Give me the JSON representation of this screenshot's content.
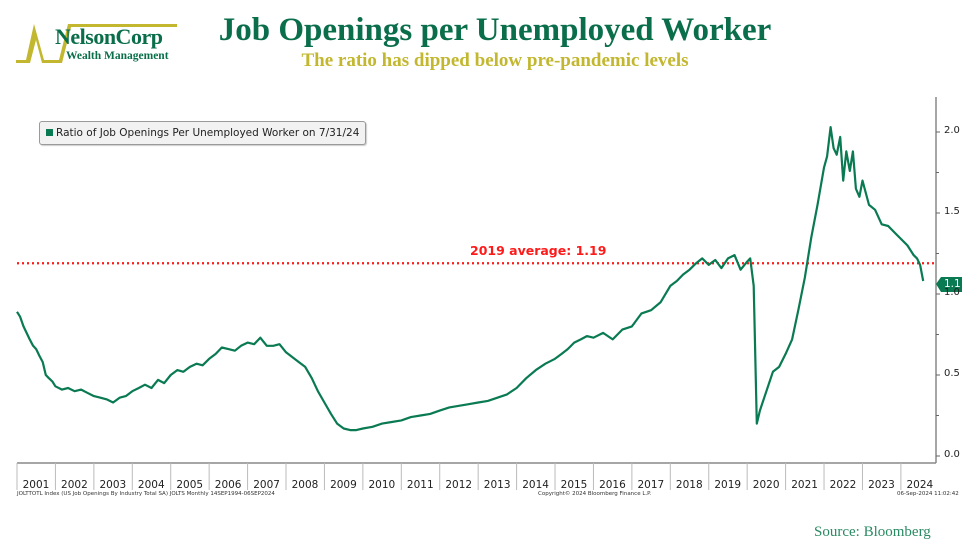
{
  "header": {
    "logo_name": "NelsonCorp",
    "logo_sub": "Wealth Management",
    "title": "Job Openings per Unemployed Worker",
    "subtitle": "The ratio has dipped below pre-pandemic levels"
  },
  "legend": {
    "label": "Ratio of Job Openings Per Unemployed Worker on 7/31/24",
    "color": "#0a7a52"
  },
  "reference_line": {
    "label": "2019 average: 1.19",
    "value": 1.19,
    "color": "#ff1a1a"
  },
  "last_value_tag": "1.1",
  "yaxis": {
    "ticks": [
      "2.0",
      "1.5",
      "1.0",
      "0.5",
      "0.0"
    ]
  },
  "xaxis": {
    "ticks": [
      "2001",
      "2002",
      "2003",
      "2004",
      "2005",
      "2006",
      "2007",
      "2008",
      "2009",
      "2010",
      "2011",
      "2012",
      "2013",
      "2014",
      "2015",
      "2016",
      "2017",
      "2018",
      "2019",
      "2020",
      "2021",
      "2022",
      "2023",
      "2024"
    ]
  },
  "footer": {
    "left": "JOLTTOTL Index (US Job Openings By Industry Total SA) JOLTS  Monthly 14SEP1994-06SEP2024",
    "middle": "Copyright© 2024 Bloomberg Finance L.P.",
    "right": "06-Sep-2024 11:02:42",
    "source": "Source: Bloomberg"
  },
  "chart_data": {
    "type": "line",
    "title": "Job Openings per Unemployed Worker",
    "subtitle": "The ratio has dipped below pre-pandemic levels",
    "xlabel": "",
    "ylabel": "",
    "ylim": [
      0,
      2.2
    ],
    "xlim": [
      2001.0,
      2024.9
    ],
    "grid": false,
    "legend_position": "top-left",
    "series": [
      {
        "name": "Ratio of Job Openings Per Unemployed Worker on 7/31/24",
        "color": "#0a7a52",
        "x": [
          2001.0,
          2001.08,
          2001.17,
          2001.25,
          2001.33,
          2001.42,
          2001.5,
          2001.58,
          2001.67,
          2001.75,
          2001.83,
          2001.92,
          2002.0,
          2002.17,
          2002.33,
          2002.5,
          2002.67,
          2002.83,
          2003.0,
          2003.17,
          2003.33,
          2003.5,
          2003.67,
          2003.83,
          2004.0,
          2004.17,
          2004.33,
          2004.5,
          2004.67,
          2004.83,
          2005.0,
          2005.17,
          2005.33,
          2005.5,
          2005.67,
          2005.83,
          2006.0,
          2006.17,
          2006.33,
          2006.5,
          2006.67,
          2006.83,
          2007.0,
          2007.17,
          2007.33,
          2007.5,
          2007.67,
          2007.83,
          2008.0,
          2008.17,
          2008.33,
          2008.5,
          2008.67,
          2008.83,
          2009.0,
          2009.17,
          2009.33,
          2009.5,
          2009.67,
          2009.83,
          2010.0,
          2010.25,
          2010.5,
          2010.75,
          2011.0,
          2011.25,
          2011.5,
          2011.75,
          2012.0,
          2012.25,
          2012.5,
          2012.75,
          2013.0,
          2013.25,
          2013.5,
          2013.75,
          2014.0,
          2014.25,
          2014.5,
          2014.75,
          2015.0,
          2015.17,
          2015.33,
          2015.5,
          2015.67,
          2015.83,
          2016.0,
          2016.25,
          2016.5,
          2016.75,
          2017.0,
          2017.25,
          2017.5,
          2017.75,
          2018.0,
          2018.17,
          2018.33,
          2018.5,
          2018.67,
          2018.83,
          2019.0,
          2019.17,
          2019.33,
          2019.5,
          2019.67,
          2019.83,
          2020.0,
          2020.08,
          2020.17,
          2020.25,
          2020.33,
          2020.5,
          2020.67,
          2020.83,
          2021.0,
          2021.17,
          2021.33,
          2021.5,
          2021.67,
          2021.83,
          2022.0,
          2022.08,
          2022.17,
          2022.25,
          2022.33,
          2022.42,
          2022.5,
          2022.58,
          2022.67,
          2022.75,
          2022.83,
          2022.92,
          2023.0,
          2023.17,
          2023.33,
          2023.5,
          2023.67,
          2023.83,
          2024.0,
          2024.17,
          2024.33,
          2024.42,
          2024.5,
          2024.58
        ],
        "values": [
          0.89,
          0.86,
          0.8,
          0.76,
          0.72,
          0.68,
          0.66,
          0.62,
          0.58,
          0.5,
          0.48,
          0.46,
          0.43,
          0.41,
          0.42,
          0.4,
          0.41,
          0.39,
          0.37,
          0.36,
          0.35,
          0.33,
          0.36,
          0.37,
          0.4,
          0.42,
          0.44,
          0.42,
          0.47,
          0.45,
          0.5,
          0.53,
          0.52,
          0.55,
          0.57,
          0.56,
          0.6,
          0.63,
          0.67,
          0.66,
          0.65,
          0.68,
          0.7,
          0.69,
          0.73,
          0.68,
          0.68,
          0.69,
          0.64,
          0.61,
          0.58,
          0.55,
          0.48,
          0.4,
          0.33,
          0.26,
          0.2,
          0.17,
          0.16,
          0.16,
          0.17,
          0.18,
          0.2,
          0.21,
          0.22,
          0.24,
          0.25,
          0.26,
          0.28,
          0.3,
          0.31,
          0.32,
          0.33,
          0.34,
          0.36,
          0.38,
          0.42,
          0.48,
          0.53,
          0.57,
          0.6,
          0.63,
          0.66,
          0.7,
          0.72,
          0.74,
          0.73,
          0.76,
          0.72,
          0.78,
          0.8,
          0.88,
          0.9,
          0.95,
          1.05,
          1.08,
          1.12,
          1.15,
          1.19,
          1.22,
          1.18,
          1.21,
          1.16,
          1.22,
          1.24,
          1.15,
          1.2,
          1.22,
          1.05,
          0.2,
          0.28,
          0.4,
          0.52,
          0.55,
          0.63,
          0.72,
          0.9,
          1.1,
          1.35,
          1.55,
          1.78,
          1.85,
          2.03,
          1.9,
          1.86,
          1.97,
          1.7,
          1.88,
          1.76,
          1.88,
          1.65,
          1.6,
          1.7,
          1.55,
          1.52,
          1.43,
          1.42,
          1.38,
          1.34,
          1.3,
          1.24,
          1.22,
          1.18,
          1.08
        ]
      }
    ],
    "reference_lines": [
      {
        "label": "2019 average: 1.19",
        "value": 1.19,
        "style": "dotted",
        "color": "#ff1a1a"
      }
    ],
    "annotations": [
      {
        "text": "1.1",
        "type": "last-value-tag"
      }
    ]
  }
}
